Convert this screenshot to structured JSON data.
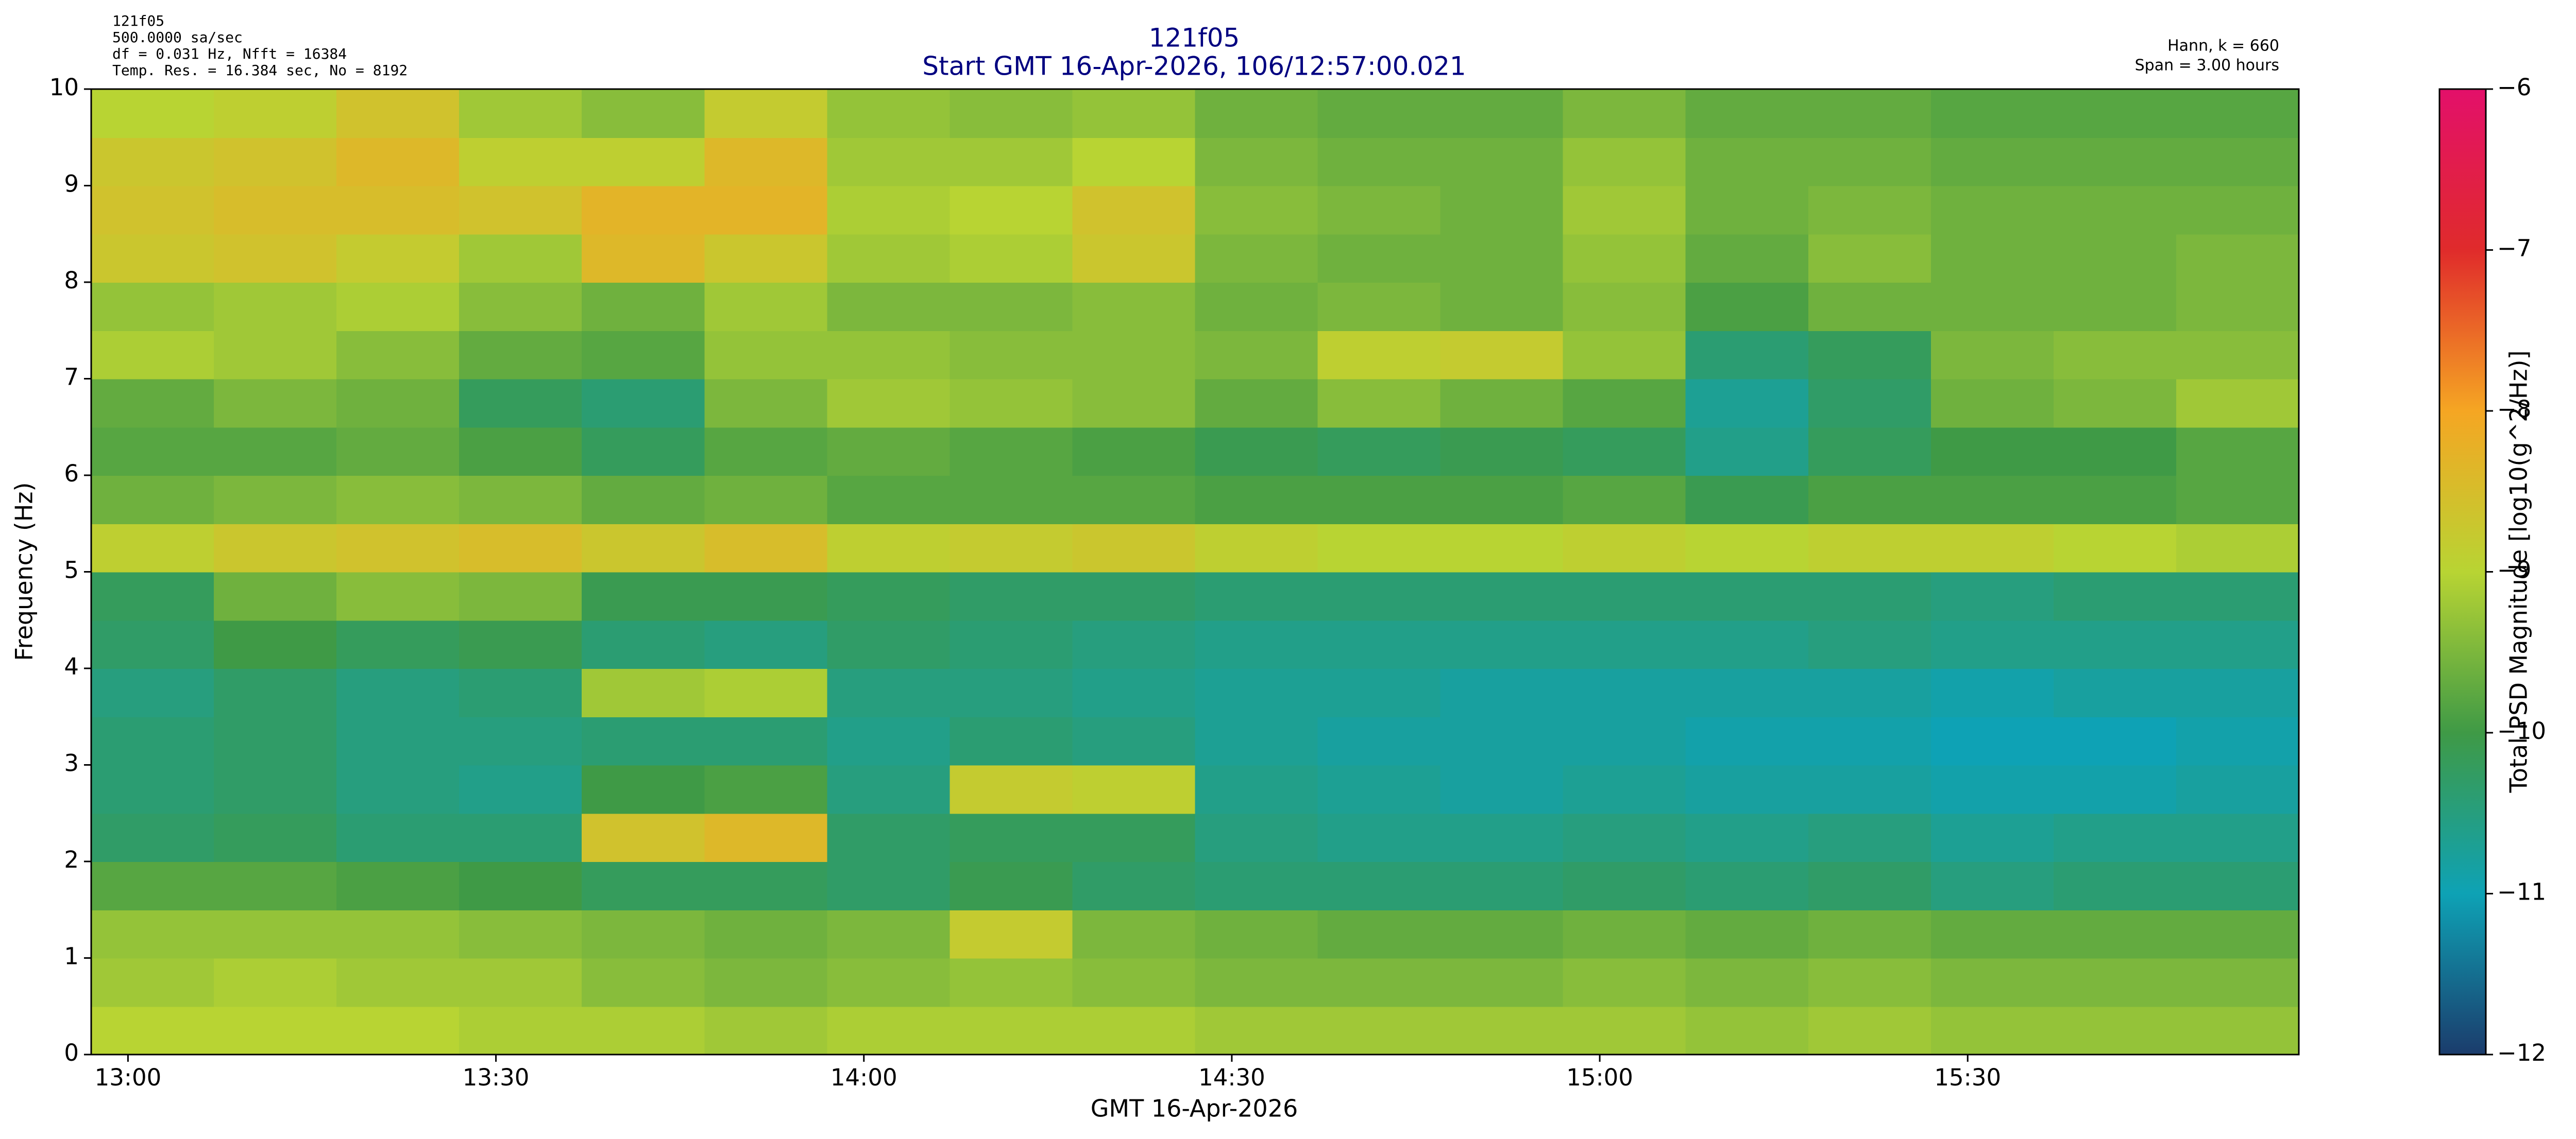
{
  "chart_data": {
    "type": "heatmap",
    "header_left": [
      "121f05",
      "500.0000 sa/sec",
      "df = 0.031 Hz,  Nfft = 16384",
      "Temp. Res. = 16.384 sec, No = 8192"
    ],
    "header_right": [
      "Hann, k = 660",
      "Span = 3.00 hours"
    ],
    "title": "121f05",
    "subtitle": "Start GMT 16-Apr-2026, 106/12:57:00.021",
    "xlabel": "GMT 16-Apr-2026",
    "ylabel": "Frequency (Hz)",
    "colorbar_label": "Total PSD Magnitude [log10(g^2/Hz)]",
    "xlim": [
      777,
      957
    ],
    "xticks": [
      {
        "value": 780,
        "label": "13:00"
      },
      {
        "value": 810,
        "label": "13:30"
      },
      {
        "value": 840,
        "label": "14:00"
      },
      {
        "value": 870,
        "label": "14:30"
      },
      {
        "value": 900,
        "label": "15:00"
      },
      {
        "value": 930,
        "label": "15:30"
      }
    ],
    "ylim": [
      0,
      10
    ],
    "yticks": [
      0,
      1,
      2,
      3,
      4,
      5,
      6,
      7,
      8,
      9,
      10
    ],
    "xbins": [
      777,
      787,
      797,
      807,
      817,
      827,
      837,
      847,
      857,
      867,
      877,
      887,
      897,
      907,
      917,
      927,
      937,
      947,
      957
    ],
    "ybins": [
      0,
      0.5,
      1,
      1.5,
      2,
      2.5,
      3,
      3.5,
      4,
      4.5,
      5,
      5.5,
      6,
      6.5,
      7,
      7.5,
      8,
      8.5,
      9,
      9.5,
      10
    ],
    "zlim": [
      -12,
      -6
    ],
    "zticks": [
      {
        "value": -12,
        "label": "−12"
      },
      {
        "value": -11,
        "label": "−11"
      },
      {
        "value": -10,
        "label": "−10"
      },
      {
        "value": -9,
        "label": "−9"
      },
      {
        "value": -8,
        "label": "−8"
      },
      {
        "value": -7,
        "label": "−7"
      },
      {
        "value": -6,
        "label": "−6"
      }
    ],
    "colormap": [
      "#1b3c6c",
      "#0ea2b5",
      "#3f9a46",
      "#b8d433",
      "#f5a623",
      "#e02b2b",
      "#e3106a"
    ],
    "values": [
      [
        -9,
        -9.2,
        -9.3,
        -9.8,
        -10.3,
        -10.4,
        -10.4,
        -10.5,
        -10.3,
        -10.2,
        -8.9,
        -9.6,
        -9.8,
        -9.7,
        -9.1,
        -9.3,
        -8.7,
        -8.6,
        -8.7,
        -9
      ],
      [
        -9,
        -9.1,
        -9.3,
        -9.8,
        -10.2,
        -10.3,
        -10.3,
        -10.3,
        -10,
        -9.6,
        -8.7,
        -9.5,
        -9.8,
        -9.5,
        -9.2,
        -9.2,
        -8.6,
        -8.5,
        -8.6,
        -8.9
      ],
      [
        -9,
        -9.2,
        -9.3,
        -9.9,
        -10.4,
        -10.5,
        -10.5,
        -10.5,
        -10.2,
        -9.4,
        -8.6,
        -9.4,
        -9.7,
        -9.6,
        -9.4,
        -9.1,
        -8.8,
        -8.5,
        -8.4,
        -8.6
      ],
      [
        -9.1,
        -9.2,
        -9.4,
        -10,
        -10.4,
        -10.6,
        -10.5,
        -10.4,
        -10.1,
        -9.5,
        -8.5,
        -9.5,
        -9.9,
        -10.2,
        -9.7,
        -9.4,
        -9.2,
        -8.6,
        -8.9,
        -9.2
      ],
      [
        -9.1,
        -9.4,
        -9.5,
        -10.2,
        -8.6,
        -10,
        -10.4,
        -9.2,
        -10.4,
        -10.1,
        -8.7,
        -9.7,
        -10.2,
        -10.4,
        -9.8,
        -9.6,
        -8.4,
        -8.3,
        -8.9,
        -9.4
      ],
      [
        -9.2,
        -9.5,
        -9.6,
        -10.2,
        -8.4,
        -9.9,
        -10.4,
        -9.1,
        -10.5,
        -10.1,
        -8.5,
        -9.6,
        -9.8,
        -9.5,
        -9.3,
        -9.2,
        -8.7,
        -8.3,
        -8.4,
        -8.8
      ],
      [
        -9.1,
        -9.4,
        -9.5,
        -10.3,
        -10.3,
        -10.5,
        -10.6,
        -10.5,
        -10.3,
        -10.2,
        -8.9,
        -9.8,
        -9.7,
        -9.2,
        -9.3,
        -9.5,
        -9.2,
        -9.1,
        -9.2,
        -9.3
      ],
      [
        -9.1,
        -9.3,
        -8.8,
        -10.1,
        -10.2,
        -8.8,
        -10.4,
        -10.5,
        -10.4,
        -10.3,
        -8.8,
        -9.8,
        -9.8,
        -9.3,
        -9.4,
        -9.5,
        -9.1,
        -9,
        -9.2,
        -9.4
      ],
      [
        -9.1,
        -9.4,
        -9.5,
        -10.3,
        -10.2,
        -8.9,
        -10.5,
        -10.6,
        -10.5,
        -10.3,
        -8.7,
        -9.8,
        -9.9,
        -9.4,
        -9.4,
        -9.4,
        -8.7,
        -8.6,
        -9,
        -9.3
      ],
      [
        -9.2,
        -9.5,
        -9.6,
        -10.4,
        -10.5,
        -10.6,
        -10.7,
        -10.7,
        -10.6,
        -10.4,
        -8.9,
        -9.9,
        -10.1,
        -9.7,
        -9.5,
        -9.6,
        -9.5,
        -9.4,
        -9.5,
        -9.6
      ],
      [
        -9.2,
        -9.5,
        -9.7,
        -10.4,
        -10.6,
        -10.7,
        -10.8,
        -10.7,
        -10.6,
        -10.4,
        -9,
        -9.9,
        -10.2,
        -9.4,
        -8.9,
        -9.5,
        -9.6,
        -9.5,
        -9.6,
        -9.7
      ],
      [
        -9.2,
        -9.5,
        -9.7,
        -10.4,
        -10.6,
        -10.8,
        -10.8,
        -10.8,
        -10.6,
        -10.4,
        -9,
        -9.9,
        -10.1,
        -9.6,
        -8.8,
        -9.6,
        -9.6,
        -9.6,
        -9.6,
        -9.7
      ],
      [
        -9.2,
        -9.4,
        -9.6,
        -10.3,
        -10.5,
        -10.7,
        -10.8,
        -10.8,
        -10.6,
        -10.4,
        -8.9,
        -9.8,
        -10.2,
        -9.8,
        -9.3,
        -9.4,
        -9.3,
        -9.2,
        -9.3,
        -9.5
      ],
      [
        -9.3,
        -9.5,
        -9.7,
        -10.4,
        -10.6,
        -10.8,
        -10.9,
        -10.8,
        -10.6,
        -10.4,
        -9,
        -10.1,
        -10.6,
        -10.7,
        -10.4,
        -9.9,
        -9.7,
        -9.6,
        -9.6,
        -9.7
      ],
      [
        -9.2,
        -9.4,
        -9.6,
        -10.3,
        -10.5,
        -10.8,
        -10.9,
        -10.8,
        -10.5,
        -10.4,
        -8.9,
        -9.9,
        -10.2,
        -10.3,
        -10.2,
        -9.6,
        -9.4,
        -9.5,
        -9.6,
        -9.7
      ],
      [
        -9.3,
        -9.5,
        -9.7,
        -10.5,
        -10.7,
        -10.9,
        -11,
        -10.9,
        -10.6,
        -10.5,
        -8.9,
        -9.9,
        -10,
        -9.6,
        -9.5,
        -9.6,
        -9.6,
        -9.6,
        -9.7,
        -9.8
      ],
      [
        -9.3,
        -9.5,
        -9.7,
        -10.4,
        -10.6,
        -10.9,
        -11,
        -10.8,
        -10.6,
        -10.4,
        -9,
        -9.9,
        -10,
        -9.5,
        -9.4,
        -9.6,
        -9.6,
        -9.6,
        -9.7,
        -9.8
      ],
      [
        -9.3,
        -9.5,
        -9.7,
        -10.4,
        -10.6,
        -10.8,
        -10.9,
        -10.8,
        -10.6,
        -10.4,
        -9.1,
        -9.8,
        -9.8,
        -9.2,
        -9.4,
        -9.5,
        -9.5,
        -9.6,
        -9.7,
        -9.8
      ]
    ]
  }
}
